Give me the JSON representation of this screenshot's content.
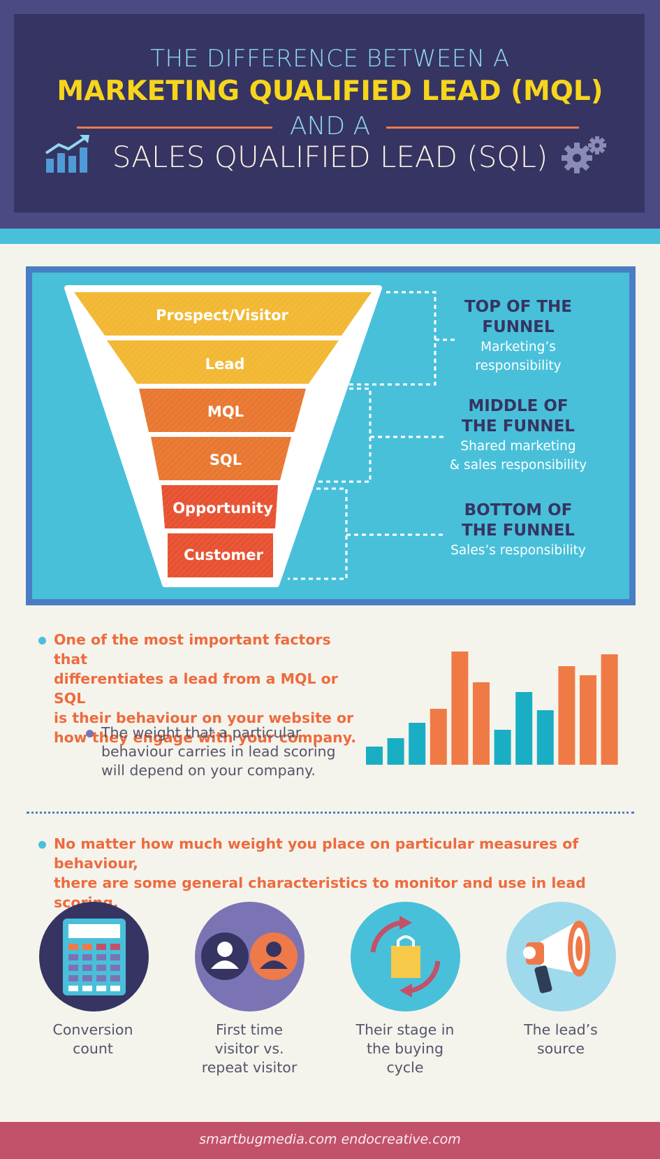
{
  "header": {
    "line1": "THE DIFFERENCE BETWEEN A",
    "line2": "MARKETING QUALIFIED LEAD (MQL)",
    "line3": "AND A",
    "line4": "SALES QUALIFIED LEAD (SQL)",
    "left_icon": "growth-chart-icon",
    "right_icon": "gears-icon"
  },
  "funnel": {
    "stages": [
      "Prospect/Visitor",
      "Lead",
      "MQL",
      "SQL",
      "Opportunity",
      "Customer"
    ],
    "sections": [
      {
        "title_a": "TOP OF THE",
        "title_b": "FUNNEL",
        "sub_a": "Marketing’s",
        "sub_b": "responsibility"
      },
      {
        "title_a": "MIDDLE OF",
        "title_b": "THE FUNNEL",
        "sub_a": "Shared marketing",
        "sub_b": "& sales responsibility"
      },
      {
        "title_a": "BOTTOM OF",
        "title_b": "THE FUNNEL",
        "sub_a": "Sales’s responsibility"
      }
    ]
  },
  "body": {
    "point1": [
      "One of the most important factors that",
      "differentiates a lead from a MQL or SQL",
      "is their behaviour on your website or",
      "how they engage with your company."
    ],
    "point1_sub": [
      "The weight that a particular",
      "behaviour carries in lead scoring",
      "will depend on your company."
    ],
    "point2": [
      "No matter how much weight you place on particular measures of behaviour,",
      "there are some general characteristics to monitor and use in lead scoring."
    ]
  },
  "bar_chart": {
    "values": [
      26,
      38,
      60,
      80,
      162,
      118,
      50,
      104,
      78,
      141,
      128,
      158
    ],
    "colors": [
      "#19aec3",
      "#19aec3",
      "#19aec3",
      "#f07a45",
      "#f07a45",
      "#f07a45",
      "#19aec3",
      "#19aec3",
      "#19aec3",
      "#f07a45",
      "#f07a45",
      "#f07a45"
    ]
  },
  "characteristics": [
    {
      "icon": "calculator-icon",
      "line1": "Conversion",
      "line2": "count"
    },
    {
      "icon": "visitors-icon",
      "line1": "First time",
      "line2": "visitor vs.",
      "line3": "repeat visitor"
    },
    {
      "icon": "buying-cycle-icon",
      "line1": "Their stage in",
      "line2": "the buying",
      "line3": "cycle"
    },
    {
      "icon": "megaphone-icon",
      "line1": "The lead’s",
      "line2": "source"
    }
  ],
  "footer": {
    "text": "smartbugmedia.com endocreative.com"
  },
  "colors": {
    "navy": "#363462",
    "cyan": "#49c0da",
    "yellow": "#f7d51c",
    "orange": "#ed6b3f",
    "footer": "#c2516a"
  }
}
